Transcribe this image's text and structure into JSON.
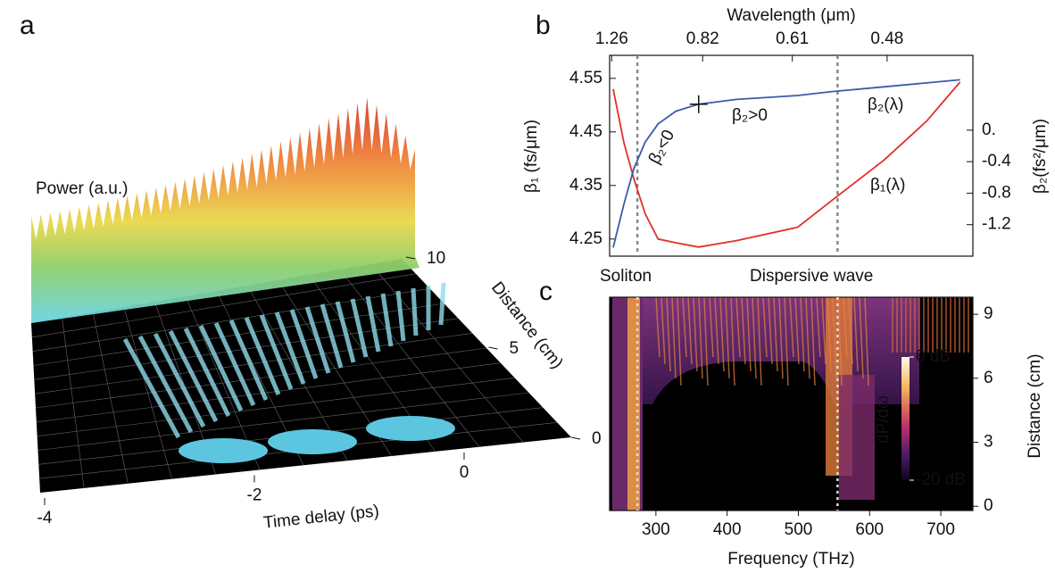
{
  "chart_data": [
    {
      "type": "surface3d",
      "panel": "a",
      "zlabel": "Power (a.u.)",
      "xlabel": "Time delay (ps)",
      "ylabel": "Distance (cm)",
      "xticks": [
        -4,
        -2,
        0
      ],
      "yticks": [
        0,
        5,
        10
      ]
    },
    {
      "type": "line",
      "panel": "b",
      "x2label": "Wavelength (μm)",
      "x2ticks": [
        1.26,
        0.82,
        0.61,
        0.48
      ],
      "xlim": [
        235,
        745
      ],
      "ylabel": "β₁ (fs/μm)",
      "ylim": [
        4.218,
        4.593
      ],
      "yticks": [
        4.25,
        4.35,
        4.45,
        4.55
      ],
      "y2label": "β₂(fs²/μm)",
      "y2lim": [
        -1.6,
        0.95
      ],
      "y2ticks": [
        {
          "value": 0,
          "label": "0."
        },
        -0.4,
        -0.8,
        -1.2
      ],
      "x": [
        240,
        255,
        269,
        285,
        303,
        328,
        360,
        413,
        499,
        547,
        620,
        680,
        727
      ],
      "series": [
        {
          "name": "β₁(λ)",
          "color": "#e0312b",
          "values": [
            4.53,
            4.43,
            4.363,
            4.297,
            4.25,
            4.243,
            4.235,
            4.247,
            4.272,
            4.322,
            4.397,
            4.47,
            4.543
          ]
        },
        {
          "name": "β₂(λ)",
          "color": "#3a5ba8",
          "axis": "y2",
          "values": [
            -1.49,
            -0.94,
            -0.49,
            -0.15,
            0.08,
            0.24,
            0.33,
            0.39,
            0.44,
            0.49,
            0.55,
            0.6,
            0.64
          ]
        }
      ],
      "vlines": [
        274,
        555
      ],
      "annotations": [
        "β₂<0",
        "β₂>0"
      ]
    },
    {
      "type": "heatmap",
      "panel": "c",
      "xlabel": "Frequency (THz)",
      "ylabel": "Distance (cm)",
      "xlim": [
        235,
        745
      ],
      "xticks": [
        300,
        400,
        500,
        600,
        700
      ],
      "ylim": [
        -0.2,
        9.8
      ],
      "yticks": [
        0,
        3,
        6,
        9
      ],
      "colorbar": {
        "label": "dP/dω",
        "lim": [
          -20,
          0
        ],
        "ticks": [
          {
            "value": 0,
            "label": "0 dB"
          },
          {
            "value": -20,
            "label": "-20 dB"
          }
        ]
      },
      "vlines": [
        274,
        555
      ],
      "annotations": [
        "Soliton",
        "Dispersive wave"
      ]
    }
  ]
}
